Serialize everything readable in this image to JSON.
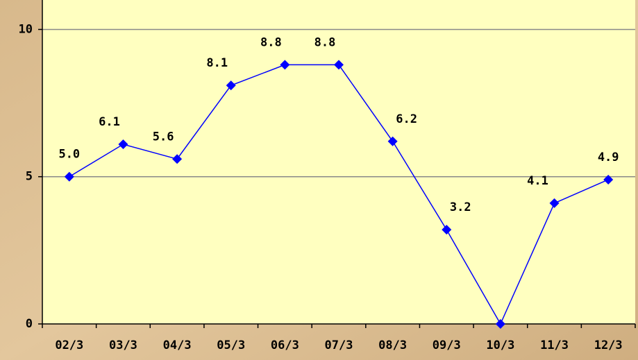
{
  "chart_data": {
    "type": "line",
    "categories": [
      "02/3",
      "03/3",
      "04/3",
      "05/3",
      "06/3",
      "07/3",
      "08/3",
      "09/3",
      "10/3",
      "11/3",
      "12/3"
    ],
    "series": [
      {
        "color": "#0000ff",
        "values": [
          5.0,
          6.1,
          5.6,
          8.1,
          8.8,
          8.8,
          6.2,
          3.2,
          0,
          4.1,
          4.9
        ],
        "value_labels": [
          "5.0",
          "6.1",
          "5.6",
          "8.1",
          "8.8",
          "8.8",
          "6.2",
          "3.2",
          null,
          "4.1",
          "4.9"
        ]
      }
    ],
    "ylim": [
      0,
      11
    ],
    "yticks": [
      0,
      5,
      10
    ],
    "grid": true
  }
}
